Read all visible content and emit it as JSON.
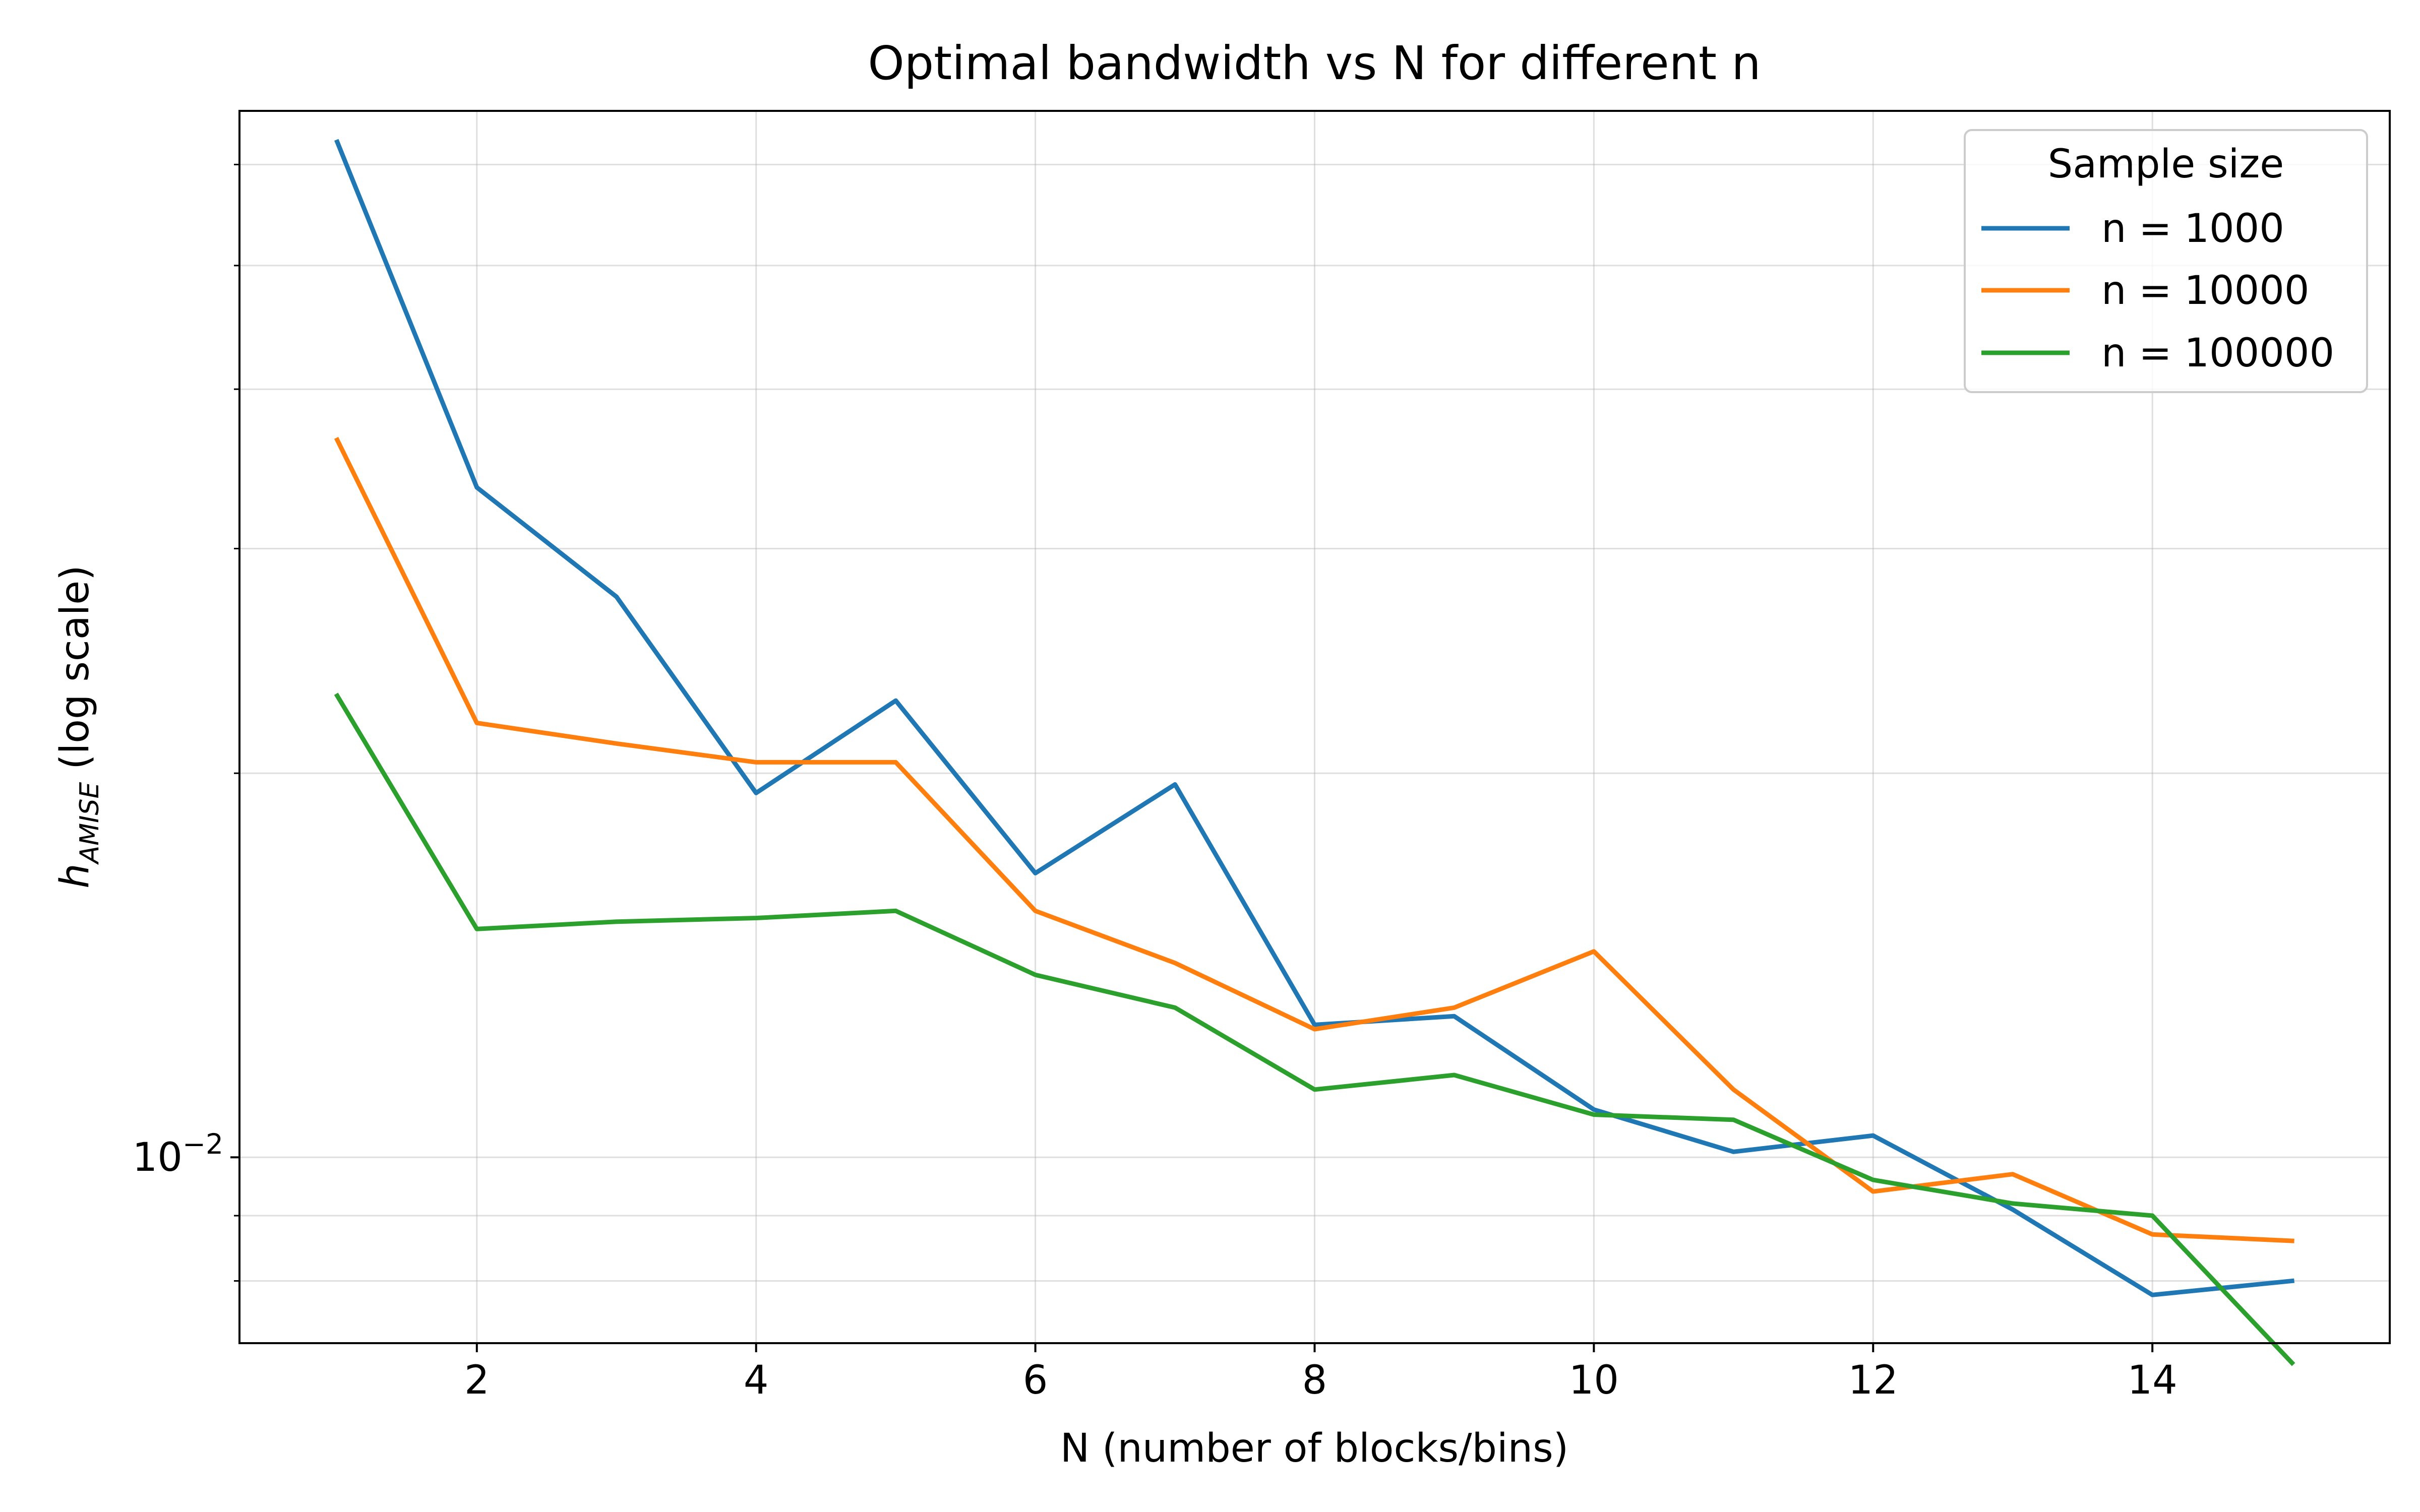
{
  "chart_data": {
    "type": "line",
    "title": "Optimal bandwidth vs N for different n",
    "xlabel": "N (number of blocks/bins)",
    "ylabel": {
      "base": "h",
      "subscript": "AMISE",
      "suffix": " (log scale)"
    },
    "y_scale": "log",
    "xlim": [
      0.3,
      15.7
    ],
    "ylim": [
      0.00715,
      0.0661
    ],
    "x_ticks": [
      2,
      4,
      6,
      8,
      10,
      12,
      14
    ],
    "y_major_ticks": [
      {
        "value": 0.01,
        "base": "10",
        "exponent": "−2"
      }
    ],
    "y_minor_ticks": [
      0.008,
      0.009,
      0.02,
      0.03,
      0.04,
      0.05,
      0.06
    ],
    "grid": true,
    "legend": {
      "title": "Sample size",
      "position": "top-right"
    },
    "x": [
      1,
      2,
      3,
      4,
      5,
      6,
      7,
      8,
      9,
      10,
      11,
      12,
      13,
      14,
      15
    ],
    "series": [
      {
        "name": "n = 1000",
        "color": "#1f77b4",
        "values": [
          0.0625,
          0.0335,
          0.0275,
          0.0193,
          0.0228,
          0.0167,
          0.0196,
          0.0127,
          0.0129,
          0.0109,
          0.0101,
          0.0104,
          0.0091,
          0.0078,
          0.008
        ]
      },
      {
        "name": "n = 10000",
        "color": "#ff7f0e",
        "values": [
          0.0365,
          0.0219,
          0.0211,
          0.0204,
          0.0204,
          0.0156,
          0.0142,
          0.0126,
          0.0131,
          0.0145,
          0.0113,
          0.0094,
          0.0097,
          0.0087,
          0.0086
        ]
      },
      {
        "name": "n = 100000",
        "color": "#2ca02c",
        "values": [
          0.023,
          0.0151,
          0.0153,
          0.0154,
          0.0156,
          0.0139,
          0.0131,
          0.0113,
          0.0116,
          0.0108,
          0.0107,
          0.0096,
          0.0092,
          0.009,
          0.0069
        ]
      }
    ]
  }
}
